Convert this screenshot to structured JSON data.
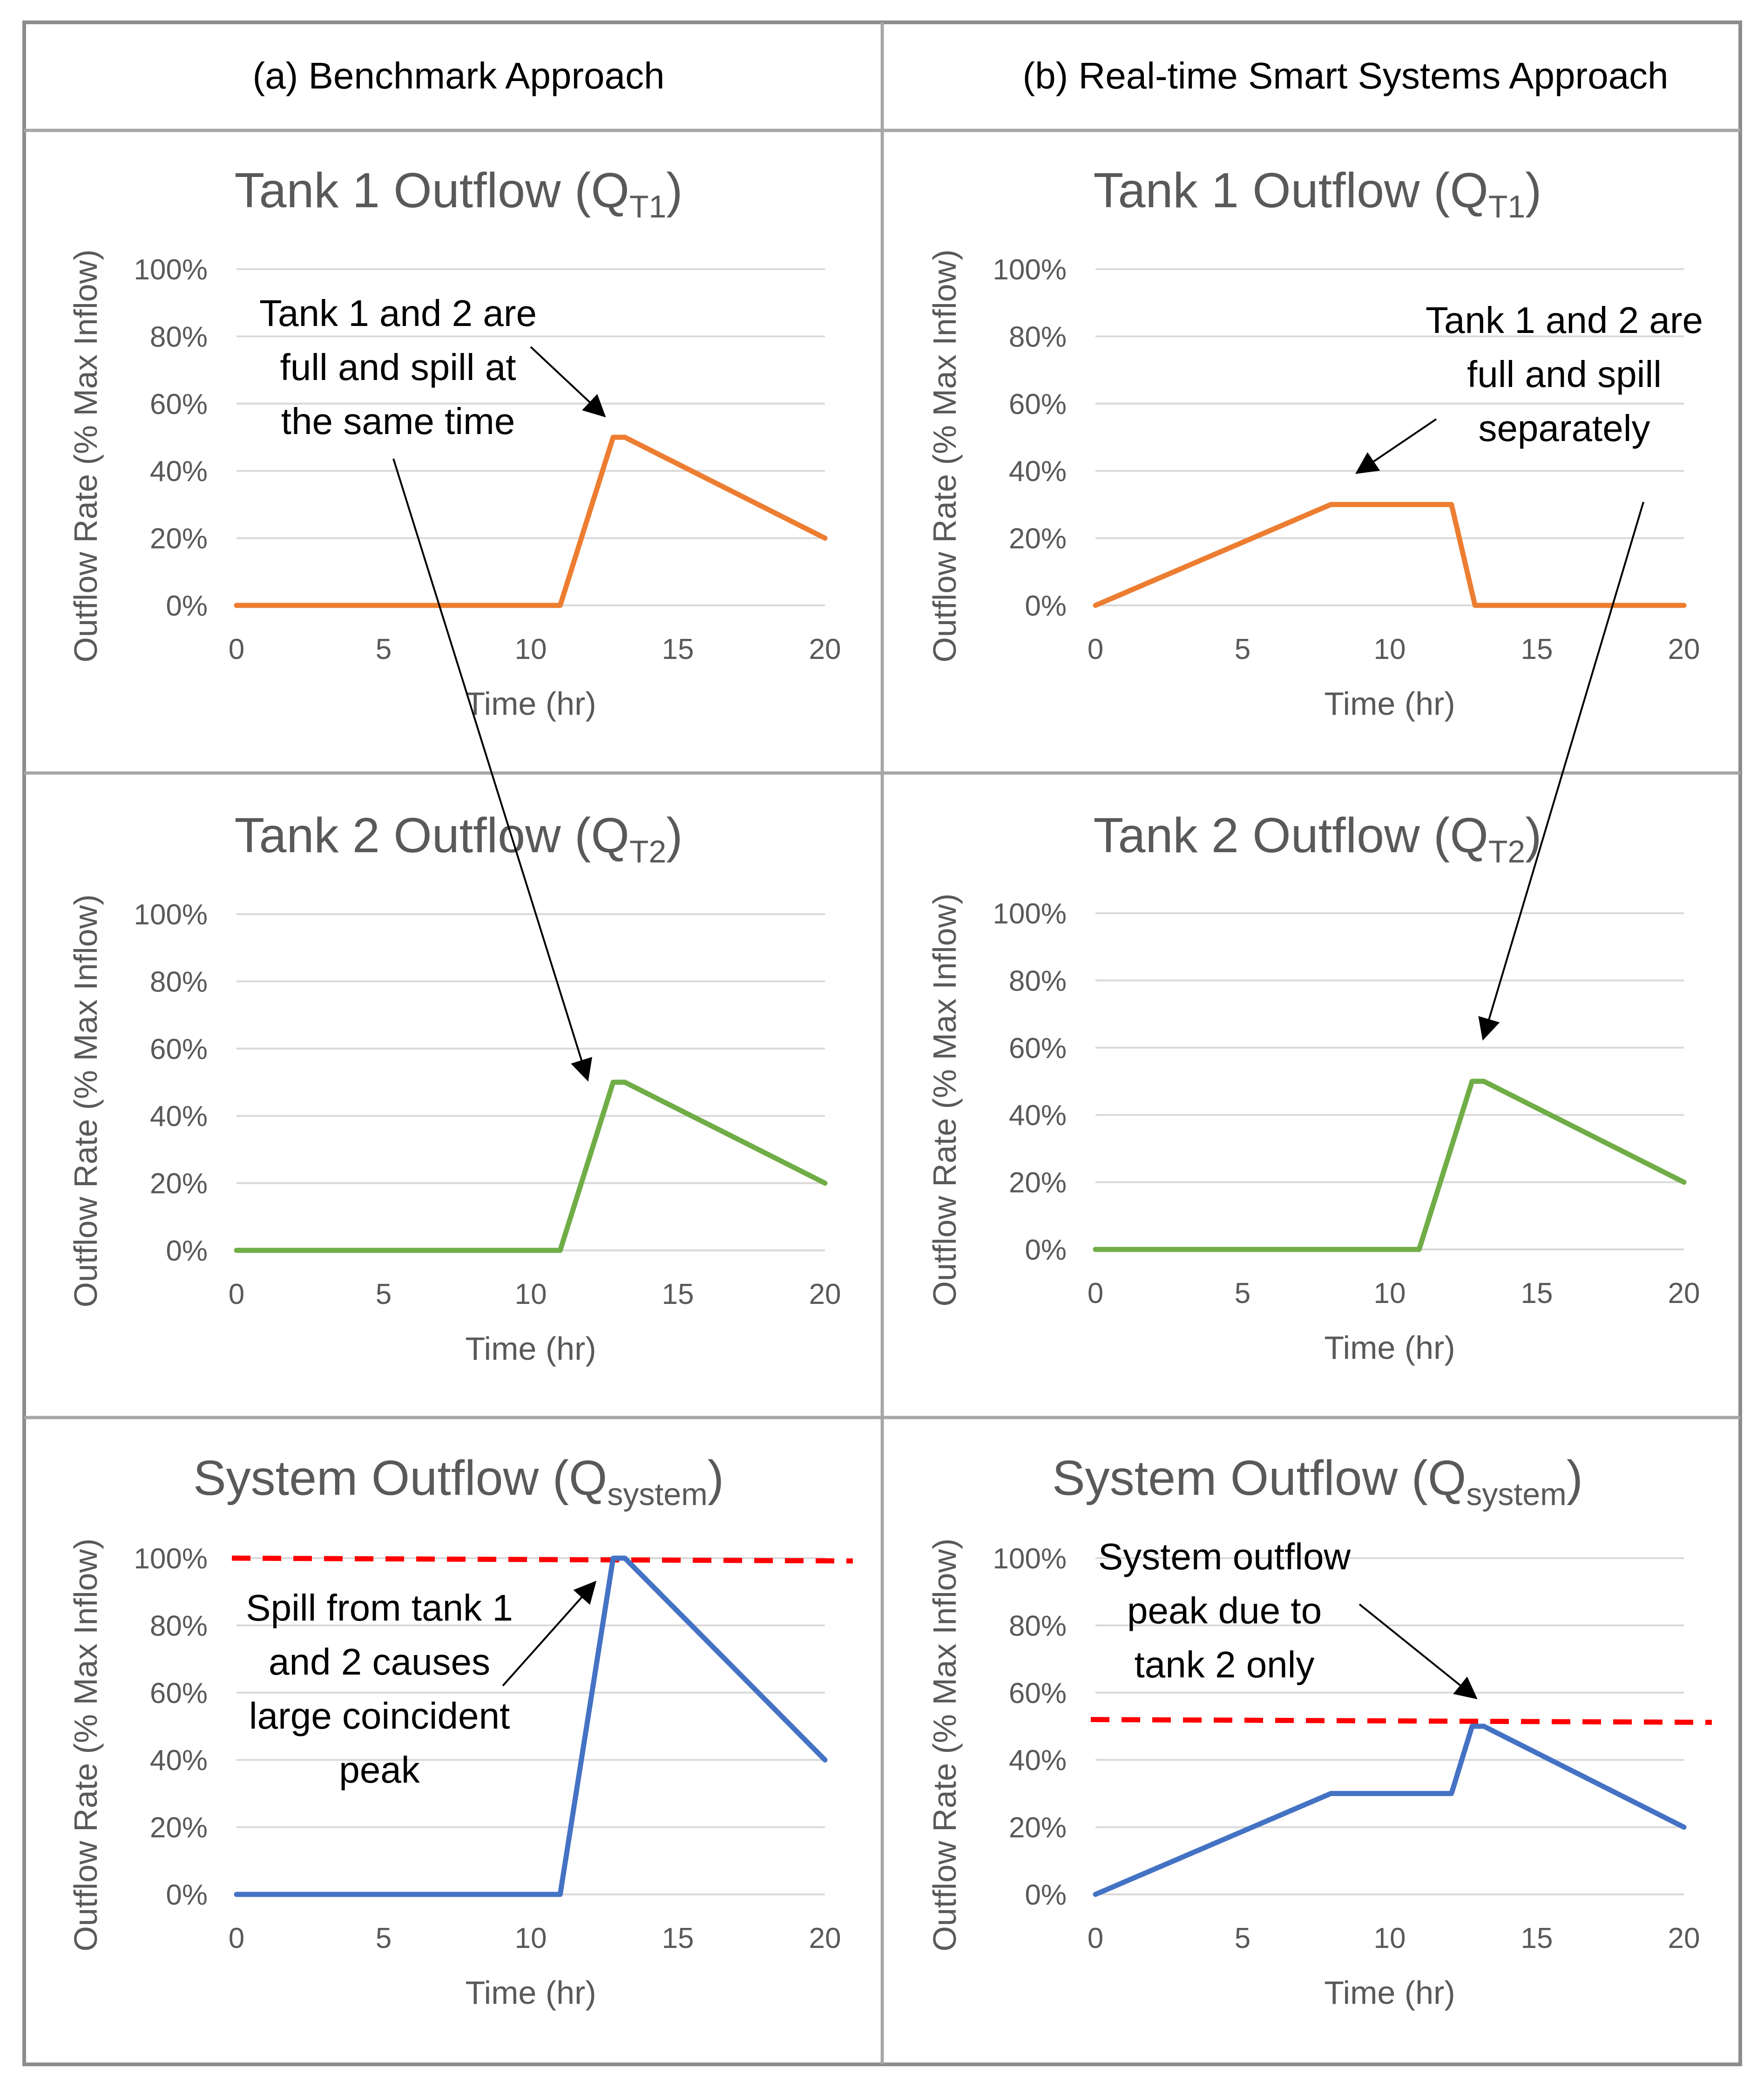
{
  "header": {
    "left": "(a) Benchmark Approach",
    "right": "(b) Real-time Smart Systems Approach"
  },
  "colors": {
    "tank1": "#ED7D31",
    "tank2": "#70AD47",
    "system": "#4472C4",
    "peak_line": "#FF0000",
    "arrow": "#000000"
  },
  "chart_data": [
    {
      "id": "a-tank1",
      "type": "line",
      "title_main": "Tank 1 Outflow (Q",
      "title_sub": "T1",
      "title_end": ")",
      "xlabel": "Time (hr)",
      "ylabel": "Outflow Rate (% Max Inflow)",
      "xlim": [
        0,
        20
      ],
      "ylim": [
        0,
        100
      ],
      "xticks": [
        "0",
        "5",
        "10",
        "15",
        "20"
      ],
      "yticks": [
        "0%",
        "20%",
        "40%",
        "60%",
        "80%",
        "100%"
      ],
      "series": [
        {
          "name": "Tank 1 Outflow",
          "color": "#ED7D31",
          "x": [
            0,
            11,
            12.8,
            13.2,
            20
          ],
          "y": [
            0,
            0,
            50,
            50,
            20
          ]
        }
      ],
      "annotation": [
        "Tank 1 and 2 are",
        "full and spill at",
        "the same time"
      ]
    },
    {
      "id": "b-tank1",
      "type": "line",
      "title_main": "Tank 1 Outflow (Q",
      "title_sub": "T1",
      "title_end": ")",
      "xlabel": "Time (hr)",
      "ylabel": "Outflow Rate (% Max Inflow)",
      "xlim": [
        0,
        20
      ],
      "ylim": [
        0,
        100
      ],
      "xticks": [
        "0",
        "5",
        "10",
        "15",
        "20"
      ],
      "yticks": [
        "0%",
        "20%",
        "40%",
        "60%",
        "80%",
        "100%"
      ],
      "series": [
        {
          "name": "Tank 1 Outflow",
          "color": "#ED7D31",
          "x": [
            0,
            8,
            12.1,
            12.9,
            20
          ],
          "y": [
            0,
            30,
            30,
            0,
            0
          ]
        }
      ],
      "annotation": [
        "Tank 1 and 2 are",
        "full and spill",
        "separately"
      ]
    },
    {
      "id": "a-tank2",
      "type": "line",
      "title_main": "Tank 2 Outflow (Q",
      "title_sub": "T2",
      "title_end": ")",
      "xlabel": "Time (hr)",
      "ylabel": "Outflow Rate (% Max Inflow)",
      "xlim": [
        0,
        20
      ],
      "ylim": [
        0,
        100
      ],
      "xticks": [
        "0",
        "5",
        "10",
        "15",
        "20"
      ],
      "yticks": [
        "0%",
        "20%",
        "40%",
        "60%",
        "80%",
        "100%"
      ],
      "series": [
        {
          "name": "Tank 2 Outflow",
          "color": "#70AD47",
          "x": [
            0,
            11,
            12.8,
            13.2,
            20
          ],
          "y": [
            0,
            0,
            50,
            50,
            20
          ]
        }
      ]
    },
    {
      "id": "b-tank2",
      "type": "line",
      "title_main": "Tank 2 Outflow (Q",
      "title_sub": "T2",
      "title_end": ")",
      "xlabel": "Time (hr)",
      "ylabel": "Outflow Rate (% Max Inflow)",
      "xlim": [
        0,
        20
      ],
      "ylim": [
        0,
        100
      ],
      "xticks": [
        "0",
        "5",
        "10",
        "15",
        "20"
      ],
      "yticks": [
        "0%",
        "20%",
        "40%",
        "60%",
        "80%",
        "100%"
      ],
      "series": [
        {
          "name": "Tank 2 Outflow",
          "color": "#70AD47",
          "x": [
            0,
            11,
            12.8,
            13.2,
            20
          ],
          "y": [
            0,
            0,
            50,
            50,
            20
          ]
        }
      ]
    },
    {
      "id": "a-system",
      "type": "line",
      "title_main": "System Outflow (Q",
      "title_sub": "system",
      "title_end": ")",
      "xlabel": "Time (hr)",
      "ylabel": "Outflow Rate (% Max Inflow)",
      "xlim": [
        0,
        20
      ],
      "ylim": [
        0,
        100
      ],
      "xticks": [
        "0",
        "5",
        "10",
        "15",
        "20"
      ],
      "yticks": [
        "0%",
        "20%",
        "40%",
        "60%",
        "80%",
        "100%"
      ],
      "series": [
        {
          "name": "System Outflow",
          "color": "#4472C4",
          "x": [
            0,
            11,
            12.8,
            13.2,
            20
          ],
          "y": [
            0,
            0,
            100,
            100,
            40
          ]
        }
      ],
      "peak_line": {
        "y": 100,
        "color": "#FF0000"
      },
      "annotation": [
        "Spill from tank 1",
        "and 2 causes",
        "large coincident",
        "peak"
      ]
    },
    {
      "id": "b-system",
      "type": "line",
      "title_main": "System Outflow (Q",
      "title_sub": "system",
      "title_end": ")",
      "xlabel": "Time (hr)",
      "ylabel": "Outflow Rate (% Max Inflow)",
      "xlim": [
        0,
        20
      ],
      "ylim": [
        0,
        100
      ],
      "xticks": [
        "0",
        "5",
        "10",
        "15",
        "20"
      ],
      "yticks": [
        "0%",
        "20%",
        "40%",
        "60%",
        "80%",
        "100%"
      ],
      "series": [
        {
          "name": "System Outflow",
          "color": "#4472C4",
          "x": [
            0,
            8,
            12.1,
            12.8,
            13.2,
            20
          ],
          "y": [
            0,
            30,
            30,
            50,
            50,
            20
          ]
        }
      ],
      "peak_line": {
        "y": 52,
        "color": "#FF0000"
      },
      "annotation": [
        "System outflow",
        "peak due to",
        "tank 2 only"
      ]
    }
  ]
}
